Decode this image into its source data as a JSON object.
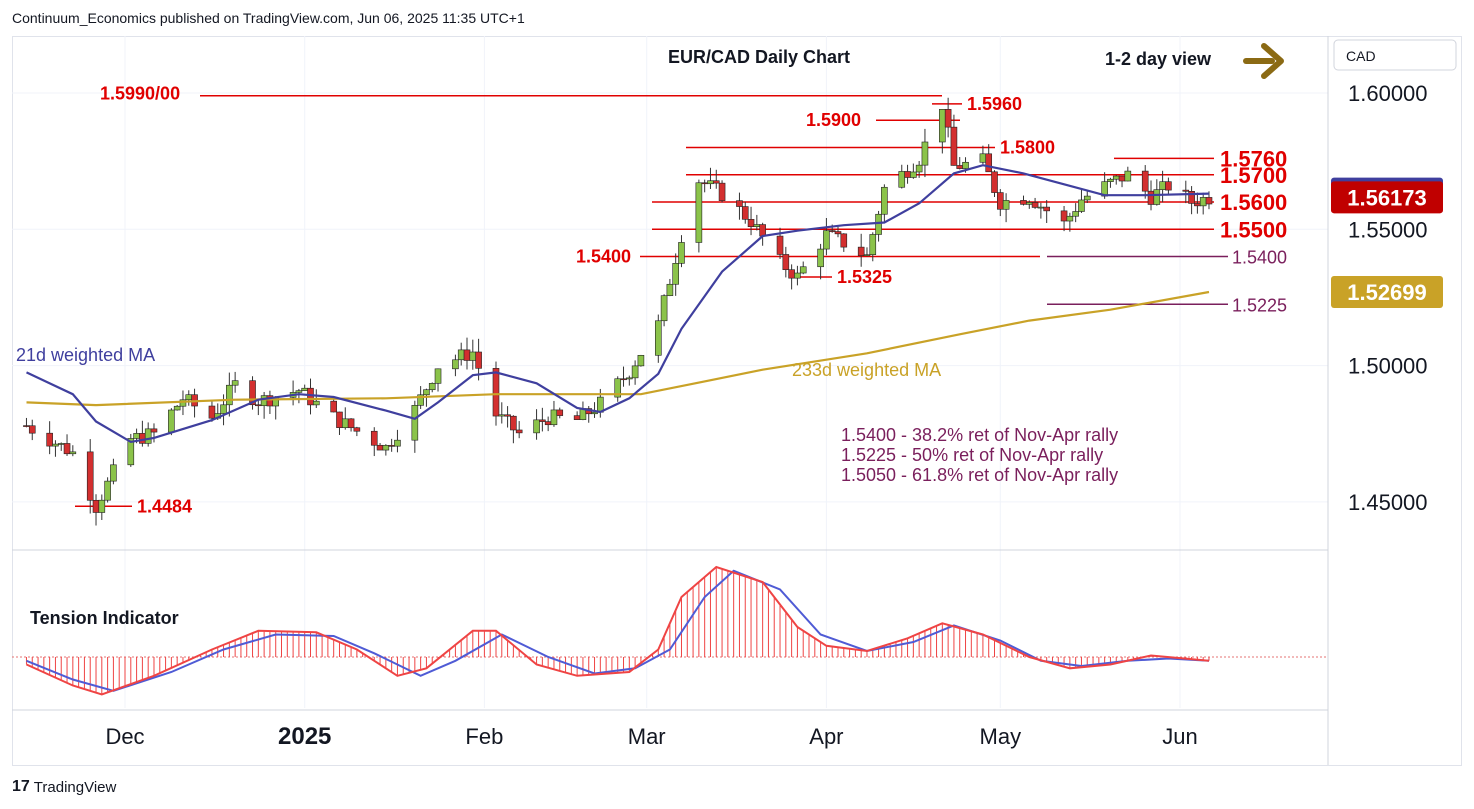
{
  "header": {
    "text": "Continuum_Economics published on TradingView.com, Jun 06, 2025 11:35 UTC+1"
  },
  "footer": {
    "logo_text": "17",
    "brand": "TradingView"
  },
  "colors": {
    "up": "#26a69a",
    "down": "#c2185b",
    "ma21": "#3f3f9e",
    "ma233": "#c9a227",
    "red": "#e00000",
    "purple": "#7a1f5c",
    "tension": "#ef4444",
    "tension_sig": "#4f5bd5"
  },
  "chart_data": {
    "type": "candlestick",
    "title": "EUR/CAD Daily Chart",
    "view": "1-2 day view",
    "currency": "CAD",
    "price_axis": {
      "ticks": [
        "1.60000",
        "1.55000",
        "1.50000",
        "1.45000"
      ],
      "range": [
        1.4331,
        1.6209
      ]
    },
    "time_axis": [
      "Dec",
      "2025",
      "Feb",
      "Mar",
      "Apr",
      "May",
      "Jun"
    ],
    "price_badges": [
      {
        "label": "1.56309",
        "value": 1.56309,
        "color": "#3f3f9e"
      },
      {
        "label": "1.56173",
        "value": 1.56173,
        "color": "#c00000"
      },
      {
        "label": "1.52699",
        "value": 1.52699,
        "color": "#c9a227"
      }
    ],
    "levels": [
      {
        "label": "1.5990/00",
        "value": 1.599,
        "side": "left"
      },
      {
        "label": "1.5960",
        "value": 1.596,
        "side": "right"
      },
      {
        "label": "1.5900",
        "value": 1.59,
        "side": "left"
      },
      {
        "label": "1.5800",
        "value": 1.58,
        "side": "right"
      },
      {
        "label": "1.5760",
        "value": 1.576,
        "side": "right"
      },
      {
        "label": "1.5700",
        "value": 1.57,
        "side": "right"
      },
      {
        "label": "1.5600",
        "value": 1.56,
        "side": "right"
      },
      {
        "label": "1.5500",
        "value": 1.55,
        "side": "right"
      },
      {
        "label": "1.5400",
        "value": 1.54,
        "side": "left"
      },
      {
        "label": "1.5325",
        "value": 1.5325,
        "side": "right"
      },
      {
        "label": "1.4484",
        "value": 1.4484,
        "side": "right"
      },
      {
        "label": "1.5400",
        "value": 1.54,
        "side": "fib"
      },
      {
        "label": "1.5225",
        "value": 1.5225,
        "side": "fib"
      }
    ],
    "annotations": {
      "ma21_label": "21d weighted MA",
      "ma233_label": "233d weighted MA",
      "ret_lines": [
        "1.5400 - 38.2% ret of Nov-Apr rally",
        "1.5225 - 50% ret of Nov-Apr rally",
        "1.5050 - 61.8% ret of Nov-Apr rally"
      ],
      "tension_label": "Tension Indicator"
    },
    "close_path": [
      [
        "Nov 14",
        1.478
      ],
      [
        "Nov 22",
        1.468
      ],
      [
        "Nov 26",
        1.4484
      ],
      [
        "Dec 02",
        1.473
      ],
      [
        "Dec 06",
        1.475
      ],
      [
        "Dec 11",
        1.488
      ],
      [
        "Dec 16",
        1.481
      ],
      [
        "Dec 20",
        1.493
      ],
      [
        "Dec 24",
        1.487
      ],
      [
        "Dec 31",
        1.491
      ],
      [
        "Jan 06",
        1.481
      ],
      [
        "Jan 10",
        1.476
      ],
      [
        "Jan 15",
        1.47
      ],
      [
        "Jan 20",
        1.484
      ],
      [
        "Jan 24",
        1.5
      ],
      [
        "Jan 30",
        1.505
      ],
      [
        "Feb 03",
        1.482
      ],
      [
        "Feb 07",
        1.475
      ],
      [
        "Feb 12",
        1.481
      ],
      [
        "Feb 17",
        1.48
      ],
      [
        "Feb 21",
        1.486
      ],
      [
        "Feb 26",
        1.498
      ],
      [
        "Mar 03",
        1.515
      ],
      [
        "Mar 07",
        1.548
      ],
      [
        "Mar 10",
        1.568
      ],
      [
        "Mar 14",
        1.563
      ],
      [
        "Mar 19",
        1.553
      ],
      [
        "Mar 24",
        1.538
      ],
      [
        "Mar 27",
        1.5325
      ],
      [
        "Apr 01",
        1.548
      ],
      [
        "Apr 04",
        1.545
      ],
      [
        "Apr 08",
        1.54
      ],
      [
        "Apr 11",
        1.565
      ],
      [
        "Apr 15",
        1.572
      ],
      [
        "Apr 17",
        1.576
      ],
      [
        "Apr 21",
        1.596
      ],
      [
        "Apr 23",
        1.573
      ],
      [
        "Apr 28",
        1.575
      ],
      [
        "May 01",
        1.56
      ],
      [
        "May 06",
        1.562
      ],
      [
        "May 12",
        1.552
      ],
      [
        "May 15",
        1.561
      ],
      [
        "May 20",
        1.567
      ],
      [
        "May 23",
        1.57
      ],
      [
        "May 27",
        1.562
      ],
      [
        "May 30",
        1.566
      ],
      [
        "Jun 03",
        1.56
      ],
      [
        "Jun 06",
        1.56173
      ]
    ],
    "ma21": [
      [
        "Nov 14",
        1.4975
      ],
      [
        "Nov 22",
        1.4895
      ],
      [
        "Nov 26",
        1.4795
      ],
      [
        "Dec 02",
        1.472
      ],
      [
        "Dec 06",
        1.4735
      ],
      [
        "Dec 16",
        1.48
      ],
      [
        "Dec 24",
        1.4875
      ],
      [
        "Dec 31",
        1.4895
      ],
      [
        "Jan 06",
        1.4885
      ],
      [
        "Jan 15",
        1.4835
      ],
      [
        "Jan 20",
        1.4805
      ],
      [
        "Jan 24",
        1.4865
      ],
      [
        "Jan 30",
        1.4965
      ],
      [
        "Feb 03",
        1.4975
      ],
      [
        "Feb 10",
        1.4935
      ],
      [
        "Feb 17",
        1.4845
      ],
      [
        "Feb 21",
        1.483
      ],
      [
        "Feb 26",
        1.488
      ],
      [
        "Mar 03",
        1.497
      ],
      [
        "Mar 07",
        1.5135
      ],
      [
        "Mar 14",
        1.5345
      ],
      [
        "Mar 21",
        1.5475
      ],
      [
        "Mar 27",
        1.5495
      ],
      [
        "Apr 04",
        1.5515
      ],
      [
        "Apr 11",
        1.5525
      ],
      [
        "Apr 17",
        1.5595
      ],
      [
        "Apr 23",
        1.5705
      ],
      [
        "Apr 28",
        1.5735
      ],
      [
        "May 05",
        1.5705
      ],
      [
        "May 12",
        1.5665
      ],
      [
        "May 19",
        1.5625
      ],
      [
        "May 26",
        1.5625
      ],
      [
        "Jun 06",
        1.5631
      ]
    ],
    "ma233": [
      [
        "Nov 14",
        1.4865
      ],
      [
        "Nov 26",
        1.4855
      ],
      [
        "Dec 20",
        1.4875
      ],
      [
        "Jan 15",
        1.488
      ],
      [
        "Feb 03",
        1.4895
      ],
      [
        "Feb 28",
        1.4895
      ],
      [
        "Mar 07",
        1.4925
      ],
      [
        "Mar 21",
        1.4985
      ],
      [
        "Apr 08",
        1.5045
      ],
      [
        "Apr 24",
        1.5115
      ],
      [
        "May 06",
        1.5165
      ],
      [
        "May 20",
        1.5205
      ],
      [
        "Jun 06",
        1.527
      ]
    ],
    "tension": [
      [
        "Nov 14",
        -0.1
      ],
      [
        "Nov 22",
        -0.38
      ],
      [
        "Nov 27",
        -0.5
      ],
      [
        "Dec 06",
        -0.25
      ],
      [
        "Dec 16",
        0.1
      ],
      [
        "Dec 24",
        0.35
      ],
      [
        "Jan 03",
        0.33
      ],
      [
        "Jan 10",
        0.1
      ],
      [
        "Jan 17",
        -0.25
      ],
      [
        "Jan 22",
        -0.15
      ],
      [
        "Jan 30",
        0.35
      ],
      [
        "Feb 03",
        0.35
      ],
      [
        "Feb 10",
        -0.1
      ],
      [
        "Feb 17",
        -0.25
      ],
      [
        "Feb 26",
        -0.2
      ],
      [
        "Mar 03",
        0.1
      ],
      [
        "Mar 07",
        0.8
      ],
      [
        "Mar 13",
        1.2
      ],
      [
        "Mar 21",
        1.0
      ],
      [
        "Mar 27",
        0.4
      ],
      [
        "Apr 01",
        0.15
      ],
      [
        "Apr 08",
        0.08
      ],
      [
        "Apr 15",
        0.25
      ],
      [
        "Apr 21",
        0.45
      ],
      [
        "Apr 28",
        0.3
      ],
      [
        "May 06",
        0.0
      ],
      [
        "May 13",
        -0.15
      ],
      [
        "May 20",
        -0.1
      ],
      [
        "May 27",
        0.02
      ],
      [
        "Jun 06",
        -0.05
      ]
    ],
    "tension_signal": [
      [
        "Nov 14",
        -0.05
      ],
      [
        "Nov 22",
        -0.3
      ],
      [
        "Nov 29",
        -0.45
      ],
      [
        "Dec 09",
        -0.2
      ],
      [
        "Dec 18",
        0.1
      ],
      [
        "Dec 27",
        0.3
      ],
      [
        "Jan 06",
        0.28
      ],
      [
        "Jan 13",
        0.05
      ],
      [
        "Jan 21",
        -0.25
      ],
      [
        "Jan 27",
        -0.05
      ],
      [
        "Feb 04",
        0.3
      ],
      [
        "Feb 12",
        0.0
      ],
      [
        "Feb 20",
        -0.22
      ],
      [
        "Feb 27",
        -0.15
      ],
      [
        "Mar 05",
        0.1
      ],
      [
        "Mar 11",
        0.8
      ],
      [
        "Mar 16",
        1.15
      ],
      [
        "Mar 24",
        0.9
      ],
      [
        "Mar 31",
        0.3
      ],
      [
        "Apr 08",
        0.08
      ],
      [
        "Apr 16",
        0.2
      ],
      [
        "Apr 23",
        0.42
      ],
      [
        "May 01",
        0.22
      ],
      [
        "May 08",
        -0.05
      ],
      [
        "May 15",
        -0.12
      ],
      [
        "May 23",
        -0.05
      ],
      [
        "May 30",
        -0.02
      ],
      [
        "Jun 06",
        -0.05
      ]
    ]
  }
}
